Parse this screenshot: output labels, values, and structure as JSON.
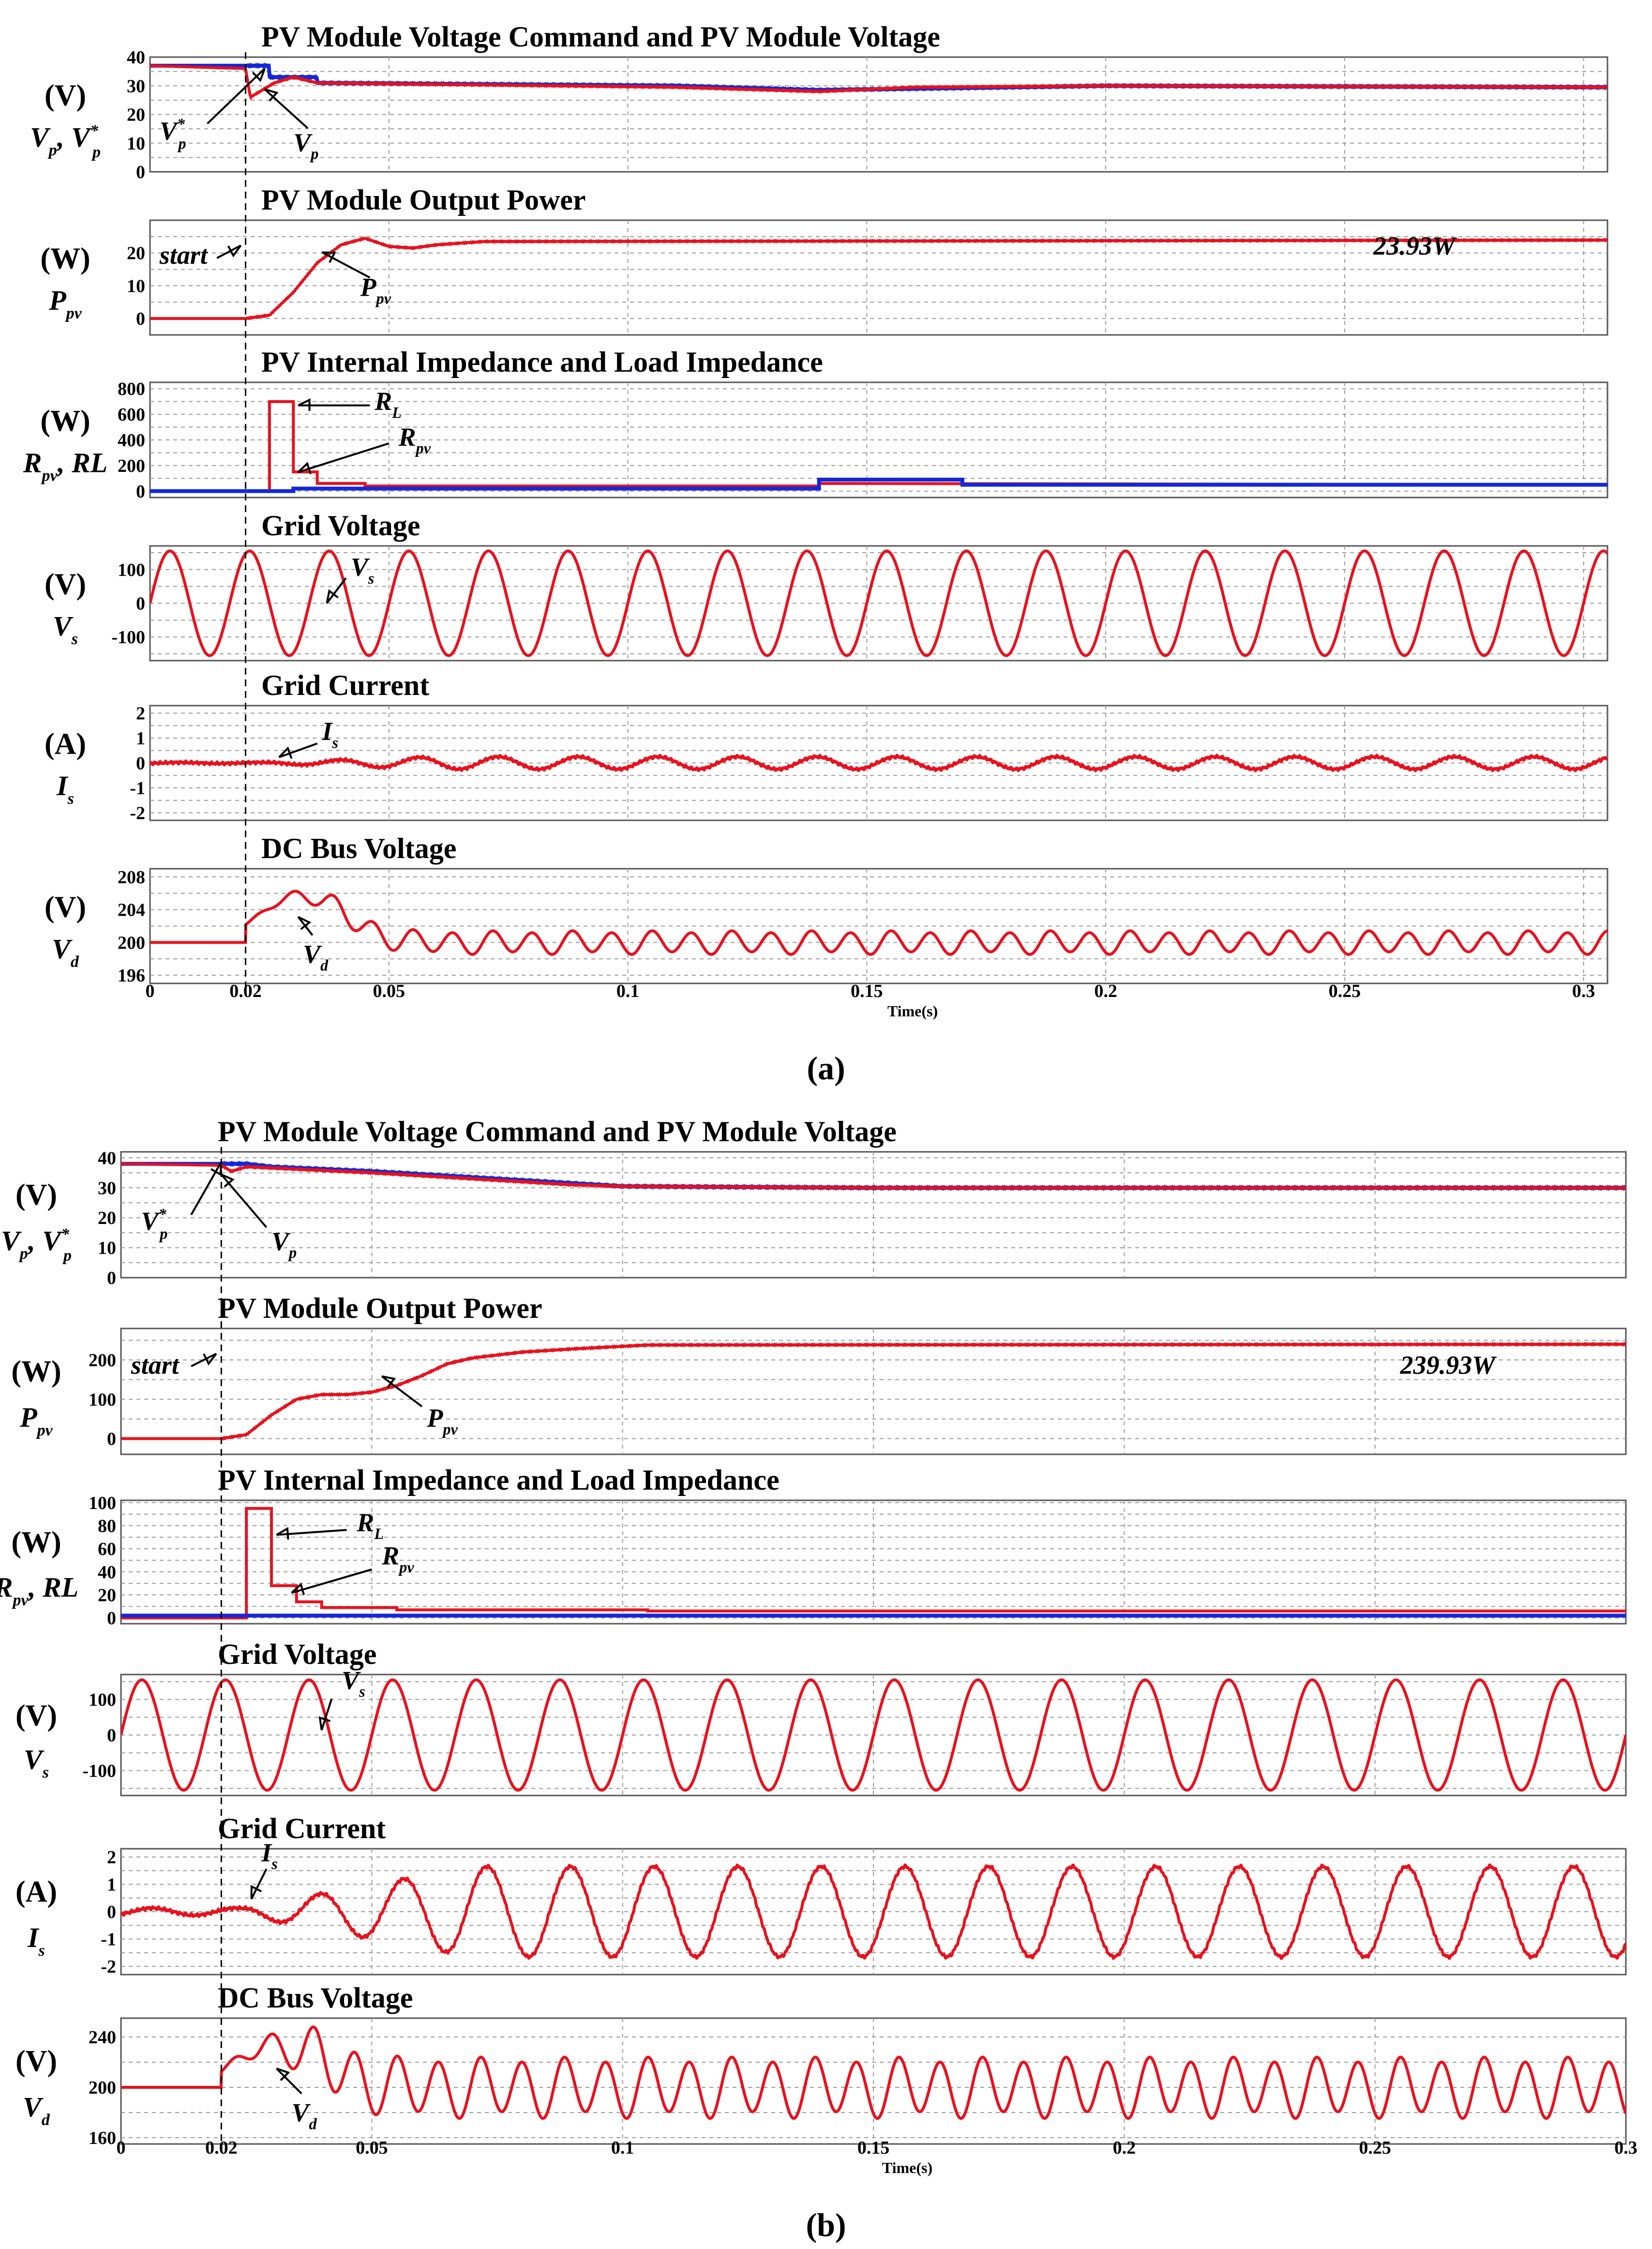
{
  "colors": {
    "red": "#e8111d",
    "blue": "#1428d9",
    "grid": "#9a9a9a"
  },
  "captions": [
    "(a)",
    "(b)"
  ],
  "chart_data": [
    {
      "figure": "a",
      "type": "line",
      "xlim": [
        0,
        0.305
      ],
      "xtick_values": [
        0,
        0.02,
        0.05,
        0.1,
        0.15,
        0.2,
        0.25,
        0.3
      ],
      "xtick_labels": [
        "0",
        "0.02",
        "0.05",
        "0.1",
        "0.15",
        "0.2",
        "0.25",
        "0.3"
      ],
      "xlabel": "Time(s)",
      "start_time": 0.02,
      "panels": [
        {
          "id": "pv-voltage",
          "title": "PV Module Voltage Command and PV Module Voltage",
          "unit": "(V)",
          "ylabel": "Vp, Vp*",
          "ylim": [
            0,
            40
          ],
          "yticks": [
            0,
            10,
            20,
            30,
            40
          ],
          "grid_step": 5,
          "annotations": [
            "Vp*",
            "Vp"
          ],
          "series": [
            {
              "name": "Vp* (command)",
              "color": "blue",
              "kind": "piecewise",
              "points": [
                [
                  0,
                  37
                ],
                [
                  0.025,
                  37
                ],
                [
                  0.025,
                  33
                ],
                [
                  0.035,
                  33
                ],
                [
                  0.035,
                  31
                ],
                [
                  0.11,
                  30
                ],
                [
                  0.14,
                  28.5
                ],
                [
                  0.2,
                  30
                ],
                [
                  0.305,
                  29.5
                ]
              ]
            },
            {
              "name": "Vp",
              "color": "red",
              "kind": "piecewise",
              "points": [
                [
                  0,
                  37
                ],
                [
                  0.02,
                  36
                ],
                [
                  0.021,
                  26
                ],
                [
                  0.026,
                  31
                ],
                [
                  0.03,
                  33
                ],
                [
                  0.035,
                  31
                ],
                [
                  0.06,
                  30.5
                ],
                [
                  0.11,
                  29.5
                ],
                [
                  0.14,
                  28
                ],
                [
                  0.16,
                  29.5
                ],
                [
                  0.2,
                  30
                ],
                [
                  0.305,
                  29.5
                ]
              ]
            }
          ]
        },
        {
          "id": "pv-power",
          "title": "PV Module Output Power",
          "unit": "(W)",
          "ylabel": "Ppv",
          "ylim": [
            -5,
            30
          ],
          "yticks": [
            0,
            10,
            20
          ],
          "grid_step": 5,
          "annotations": [
            "start",
            "Ppv",
            "23.93W"
          ],
          "series": [
            {
              "name": "Ppv",
              "color": "red",
              "kind": "piecewise",
              "points": [
                [
                  0,
                  0
                ],
                [
                  0.02,
                  0
                ],
                [
                  0.025,
                  1
                ],
                [
                  0.03,
                  8
                ],
                [
                  0.035,
                  17
                ],
                [
                  0.04,
                  22.5
                ],
                [
                  0.045,
                  24.5
                ],
                [
                  0.05,
                  22
                ],
                [
                  0.055,
                  21.5
                ],
                [
                  0.06,
                  22.5
                ],
                [
                  0.07,
                  23.5
                ],
                [
                  0.305,
                  23.93
                ]
              ]
            }
          ]
        },
        {
          "id": "impedance",
          "title": "PV Internal Impedance and Load Impedance",
          "unit": "(W)",
          "ylabel": "Rpv, RL",
          "ylim": [
            -50,
            850
          ],
          "yticks": [
            0,
            200,
            400,
            600,
            800
          ],
          "grid_step": 100,
          "annotations": [
            "RL",
            "Rpv"
          ],
          "series": [
            {
              "name": "RL",
              "color": "red",
              "kind": "step",
              "points": [
                [
                  0,
                  0
                ],
                [
                  0.025,
                  0
                ],
                [
                  0.025,
                  700
                ],
                [
                  0.03,
                  700
                ],
                [
                  0.03,
                  150
                ],
                [
                  0.035,
                  150
                ],
                [
                  0.035,
                  60
                ],
                [
                  0.045,
                  60
                ],
                [
                  0.045,
                  40
                ],
                [
                  0.14,
                  40
                ],
                [
                  0.14,
                  60
                ],
                [
                  0.305,
                  50
                ]
              ]
            },
            {
              "name": "Rpv",
              "color": "blue",
              "kind": "step",
              "points": [
                [
                  0,
                  0
                ],
                [
                  0.03,
                  0
                ],
                [
                  0.03,
                  20
                ],
                [
                  0.14,
                  20
                ],
                [
                  0.14,
                  90
                ],
                [
                  0.17,
                  90
                ],
                [
                  0.17,
                  50
                ],
                [
                  0.305,
                  50
                ]
              ]
            }
          ]
        },
        {
          "id": "grid-voltage",
          "title": "Grid Voltage",
          "unit": "(V)",
          "ylabel": "Vs",
          "ylim": [
            -170,
            170
          ],
          "yticks": [
            -100,
            0,
            100
          ],
          "grid_step": 50,
          "annotations": [
            "Vs"
          ],
          "series": [
            {
              "name": "Vs",
              "color": "red",
              "kind": "sine",
              "amplitude": 155,
              "frequency_hz": 60,
              "offset": 0
            }
          ]
        },
        {
          "id": "grid-current",
          "title": "Grid Current",
          "unit": "(A)",
          "ylabel": "Is",
          "ylim": [
            -2.3,
            2.3
          ],
          "yticks": [
            -2,
            -1,
            0,
            1,
            2
          ],
          "grid_step": 0.5,
          "annotations": [
            "Is"
          ],
          "series": [
            {
              "name": "Is",
              "color": "red",
              "kind": "envelope_sine",
              "amplitude": 0.25,
              "frequency_hz": 60,
              "ramp_start": 0.02,
              "ramp_end": 0.06,
              "noise": 0.06
            }
          ]
        },
        {
          "id": "dc-bus",
          "title": "DC Bus Voltage",
          "unit": "(V)",
          "ylabel": "Vd",
          "ylim": [
            195,
            209
          ],
          "yticks": [
            196,
            200,
            204,
            208
          ],
          "grid_step": 2,
          "annotations": [
            "Vd"
          ],
          "series": [
            {
              "name": "Vd",
              "color": "red",
              "kind": "dcbus",
              "base": 200,
              "bump": 6.5,
              "ripple": 1.3,
              "frequency_hz": 120
            }
          ]
        }
      ]
    },
    {
      "figure": "b",
      "type": "line",
      "xlim": [
        0,
        0.3
      ],
      "xtick_values": [
        0,
        0.02,
        0.05,
        0.1,
        0.15,
        0.2,
        0.25,
        0.3
      ],
      "xtick_labels": [
        "0",
        "0.02",
        "0.05",
        "0.1",
        "0.15",
        "0.2",
        "0.25",
        "0.3"
      ],
      "xlabel": "Time(s)",
      "start_time": 0.02,
      "panels": [
        {
          "id": "pv-voltage",
          "title": "PV Module Voltage Command and PV Module Voltage",
          "unit": "(V)",
          "ylabel": "Vp, Vp*",
          "ylim": [
            0,
            42
          ],
          "yticks": [
            0,
            10,
            20,
            30,
            40
          ],
          "grid_step": 5,
          "annotations": [
            "Vp*",
            "Vp"
          ],
          "series": [
            {
              "name": "Vp* (command)",
              "color": "blue",
              "kind": "piecewise",
              "points": [
                [
                  0,
                  38
                ],
                [
                  0.025,
                  38
                ],
                [
                  0.03,
                  37
                ],
                [
                  0.05,
                  35.5
                ],
                [
                  0.07,
                  33.5
                ],
                [
                  0.09,
                  31.5
                ],
                [
                  0.1,
                  30.5
                ],
                [
                  0.15,
                  30
                ],
                [
                  0.3,
                  30
                ]
              ]
            },
            {
              "name": "Vp",
              "color": "red",
              "kind": "piecewise",
              "points": [
                [
                  0,
                  38
                ],
                [
                  0.02,
                  37.5
                ],
                [
                  0.022,
                  35.5
                ],
                [
                  0.025,
                  37
                ],
                [
                  0.05,
                  35
                ],
                [
                  0.07,
                  33
                ],
                [
                  0.09,
                  31
                ],
                [
                  0.1,
                  30.5
                ],
                [
                  0.15,
                  30
                ],
                [
                  0.3,
                  30
                ]
              ]
            }
          ]
        },
        {
          "id": "pv-power",
          "title": "PV Module Output Power",
          "unit": "(W)",
          "ylabel": "Ppv",
          "ylim": [
            -40,
            280
          ],
          "yticks": [
            0,
            100,
            200
          ],
          "grid_step": 50,
          "annotations": [
            "start",
            "Ppv",
            "239.93W"
          ],
          "series": [
            {
              "name": "Ppv",
              "color": "red",
              "kind": "piecewise",
              "points": [
                [
                  0,
                  0
                ],
                [
                  0.02,
                  0
                ],
                [
                  0.025,
                  10
                ],
                [
                  0.03,
                  60
                ],
                [
                  0.035,
                  100
                ],
                [
                  0.04,
                  112
                ],
                [
                  0.045,
                  112
                ],
                [
                  0.05,
                  118
                ],
                [
                  0.055,
                  135
                ],
                [
                  0.06,
                  160
                ],
                [
                  0.065,
                  190
                ],
                [
                  0.07,
                  205
                ],
                [
                  0.08,
                  220
                ],
                [
                  0.09,
                  228
                ],
                [
                  0.105,
                  238
                ],
                [
                  0.3,
                  239.93
                ]
              ]
            }
          ]
        },
        {
          "id": "impedance",
          "title": "PV Internal Impedance and Load Impedance",
          "unit": "(W)",
          "ylabel": "Rpv, RL",
          "ylim": [
            -5,
            102
          ],
          "yticks": [
            0,
            20,
            40,
            60,
            80,
            100
          ],
          "grid_step": 10,
          "annotations": [
            "RL",
            "Rpv"
          ],
          "series": [
            {
              "name": "RL",
              "color": "red",
              "kind": "step",
              "points": [
                [
                  0,
                  0
                ],
                [
                  0.025,
                  0
                ],
                [
                  0.025,
                  95
                ],
                [
                  0.03,
                  95
                ],
                [
                  0.03,
                  28
                ],
                [
                  0.035,
                  28
                ],
                [
                  0.035,
                  14
                ],
                [
                  0.04,
                  14
                ],
                [
                  0.04,
                  9
                ],
                [
                  0.055,
                  9
                ],
                [
                  0.055,
                  7
                ],
                [
                  0.105,
                  7
                ],
                [
                  0.105,
                  6
                ],
                [
                  0.3,
                  6
                ]
              ]
            },
            {
              "name": "Rpv",
              "color": "blue",
              "kind": "step",
              "points": [
                [
                  0,
                  2
                ],
                [
                  0.3,
                  2
                ]
              ]
            }
          ]
        },
        {
          "id": "grid-voltage",
          "title": "Grid Voltage",
          "unit": "(V)",
          "ylabel": "Vs",
          "ylim": [
            -170,
            170
          ],
          "yticks": [
            -100,
            0,
            100
          ],
          "grid_step": 50,
          "annotations": [
            "Vs"
          ],
          "series": [
            {
              "name": "Vs",
              "color": "red",
              "kind": "sine",
              "amplitude": 155,
              "frequency_hz": 60,
              "offset": 0
            }
          ]
        },
        {
          "id": "grid-current",
          "title": "Grid Current",
          "unit": "(A)",
          "ylabel": "Is",
          "ylim": [
            -2.3,
            2.3
          ],
          "yticks": [
            -2,
            -1,
            0,
            1,
            2
          ],
          "grid_step": 0.5,
          "annotations": [
            "Is"
          ],
          "series": [
            {
              "name": "Is",
              "color": "red",
              "kind": "envelope_sine",
              "amplitude": 1.65,
              "frequency_hz": 60,
              "ramp_start": 0.02,
              "ramp_end": 0.07,
              "noise": 0.06
            }
          ]
        },
        {
          "id": "dc-bus",
          "title": "DC Bus Voltage",
          "unit": "(V)",
          "ylabel": "Vd",
          "ylim": [
            155,
            255
          ],
          "yticks": [
            160,
            200,
            240
          ],
          "grid_step": 20,
          "annotations": [
            "Vd"
          ],
          "series": [
            {
              "name": "Vd",
              "color": "red",
              "kind": "dcbus",
              "base": 200,
              "bump": 38,
              "ripple": 22,
              "frequency_hz": 120
            }
          ]
        }
      ]
    }
  ]
}
